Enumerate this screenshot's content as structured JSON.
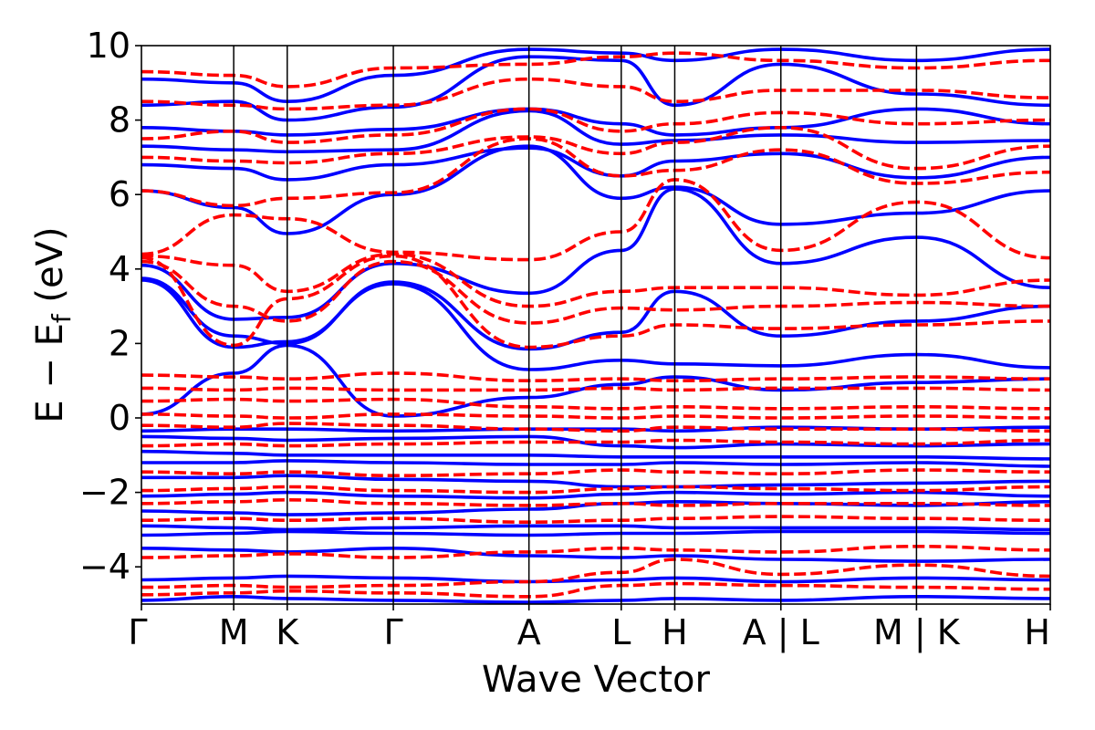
{
  "chart_data": {
    "type": "line",
    "title": "",
    "xlabel": "Wave Vector",
    "ylabel": "E − E",
    "ylabel_sub": "f",
    "ylabel_unit": " (eV)",
    "ylim": [
      -5,
      10
    ],
    "yticks": [
      {
        "value": -4,
        "label": "−4"
      },
      {
        "value": -2,
        "label": "−2"
      },
      {
        "value": 0,
        "label": "0"
      },
      {
        "value": 2,
        "label": "2"
      },
      {
        "value": 4,
        "label": "4"
      },
      {
        "value": 6,
        "label": "6"
      },
      {
        "value": 8,
        "label": "8"
      },
      {
        "value": 10,
        "label": "10"
      }
    ],
    "kpath": [
      {
        "label": "Γ",
        "k": 0
      },
      {
        "label": "M",
        "k": 1
      },
      {
        "label": "K",
        "k": 1.58
      },
      {
        "label": "Γ",
        "k": 2.73
      },
      {
        "label": "A",
        "k": 4.2
      },
      {
        "label": "L",
        "k": 5.2
      },
      {
        "label": "H",
        "k": 5.78
      },
      {
        "label": "A | L",
        "k": 6.93
      },
      {
        "label": "M | K",
        "k": 8.4
      },
      {
        "label": "H",
        "k": 9.85
      }
    ],
    "grid": false,
    "legend": "none",
    "series": [
      {
        "style": "solid",
        "color": "#0000ff",
        "bands": [
          [
            -4.9,
            -4.8,
            -4.85,
            -4.9,
            -4.95,
            -4.9,
            -4.85,
            -4.9,
            -4.8,
            -4.85
          ],
          [
            -4.35,
            -4.3,
            -4.25,
            -4.3,
            -4.4,
            -4.35,
            -4.3,
            -4.4,
            -4.3,
            -4.35
          ],
          [
            -3.5,
            -3.55,
            -3.6,
            -3.5,
            -3.7,
            -3.75,
            -3.7,
            -3.8,
            -3.85,
            -3.8
          ],
          [
            -3.15,
            -3.1,
            -3.05,
            -3.1,
            -3.15,
            -3.1,
            -3.1,
            -3.05,
            -3.05,
            -3.1
          ],
          [
            -2.9,
            -2.95,
            -3.0,
            -2.95,
            -2.9,
            -2.9,
            -2.95,
            -2.95,
            -2.95,
            -3.0
          ],
          [
            -2.5,
            -2.55,
            -2.6,
            -2.55,
            -2.45,
            -2.3,
            -2.25,
            -2.3,
            -2.35,
            -2.25
          ],
          [
            -2.1,
            -2.05,
            -2.0,
            -2.1,
            -2.15,
            -2.05,
            -2.0,
            -2.05,
            -2.0,
            -2.1
          ],
          [
            -1.6,
            -1.6,
            -1.55,
            -1.65,
            -1.7,
            -1.85,
            -1.85,
            -1.8,
            -1.75,
            -1.7
          ],
          [
            -1.2,
            -1.2,
            -1.15,
            -1.2,
            -1.25,
            -1.25,
            -1.2,
            -1.25,
            -1.2,
            -1.3
          ],
          [
            -0.9,
            -0.95,
            -1.0,
            -1.0,
            -1.0,
            -1.05,
            -1.05,
            -1.05,
            -1.05,
            -1.1
          ],
          [
            -0.5,
            -0.55,
            -0.6,
            -0.55,
            -0.5,
            -0.75,
            -0.8,
            -0.7,
            -0.75,
            -0.7
          ],
          [
            -0.35,
            -0.3,
            -0.3,
            -0.35,
            -0.3,
            -0.3,
            -0.35,
            -0.25,
            -0.3,
            -0.25
          ],
          [
            0.1,
            1.2,
            1.95,
            0.05,
            0.55,
            0.9,
            1.1,
            0.75,
            0.95,
            1.05
          ],
          [
            3.7,
            1.9,
            2.05,
            3.6,
            1.3,
            1.55,
            1.45,
            1.4,
            1.7,
            1.35
          ],
          [
            3.75,
            2.2,
            2.0,
            3.65,
            1.85,
            2.3,
            3.4,
            2.2,
            2.6,
            3.0
          ],
          [
            4.1,
            2.65,
            2.7,
            4.15,
            3.35,
            4.5,
            6.15,
            4.15,
            4.85,
            3.5
          ],
          [
            6.1,
            5.65,
            4.95,
            6.0,
            7.3,
            5.9,
            6.2,
            5.2,
            5.5,
            6.1
          ],
          [
            6.8,
            6.7,
            6.4,
            6.8,
            7.25,
            6.5,
            6.9,
            7.1,
            6.45,
            7.0
          ],
          [
            7.3,
            7.2,
            7.15,
            7.2,
            8.25,
            7.35,
            7.45,
            7.6,
            7.4,
            7.45
          ],
          [
            7.8,
            7.7,
            7.6,
            7.75,
            8.3,
            7.9,
            7.6,
            7.8,
            8.3,
            7.9
          ],
          [
            8.4,
            8.5,
            8.0,
            8.35,
            9.7,
            9.6,
            8.4,
            9.5,
            8.7,
            8.4
          ],
          [
            9.1,
            9.0,
            8.5,
            9.2,
            9.9,
            9.8,
            9.6,
            9.9,
            9.6,
            9.9
          ]
        ]
      },
      {
        "style": "dashed",
        "color": "#ff0000",
        "bands": [
          [
            -4.75,
            -4.7,
            -4.65,
            -4.7,
            -4.8,
            -4.5,
            -4.45,
            -4.5,
            -4.55,
            -4.6
          ],
          [
            -4.55,
            -4.5,
            -4.55,
            -4.5,
            -4.4,
            -4.15,
            -3.8,
            -4.2,
            -3.95,
            -4.25
          ],
          [
            -3.75,
            -3.7,
            -3.65,
            -3.75,
            -3.6,
            -3.5,
            -3.55,
            -3.6,
            -3.45,
            -3.55
          ],
          [
            -2.75,
            -2.7,
            -2.75,
            -2.7,
            -2.8,
            -2.75,
            -2.7,
            -2.65,
            -2.7,
            -2.75
          ],
          [
            -2.3,
            -2.25,
            -2.2,
            -2.3,
            -2.35,
            -2.3,
            -2.35,
            -2.3,
            -2.3,
            -2.35
          ],
          [
            -1.95,
            -1.9,
            -1.85,
            -1.95,
            -2.0,
            -1.9,
            -1.85,
            -1.9,
            -1.95,
            -1.85
          ],
          [
            -1.45,
            -1.5,
            -1.45,
            -1.55,
            -1.5,
            -1.4,
            -1.45,
            -1.5,
            -1.4,
            -1.45
          ],
          [
            -0.75,
            -0.7,
            -0.75,
            -0.7,
            -0.65,
            -0.65,
            -0.6,
            -0.65,
            -0.7,
            -0.6
          ],
          [
            -0.2,
            -0.25,
            -0.15,
            -0.2,
            -0.3,
            -0.35,
            -0.25,
            -0.3,
            -0.3,
            -0.35
          ],
          [
            0.1,
            0.05,
            0.0,
            0.1,
            0.05,
            0.0,
            0.05,
            0.0,
            0.05,
            0.0
          ],
          [
            0.45,
            0.5,
            0.45,
            0.5,
            0.3,
            0.25,
            0.3,
            0.25,
            0.3,
            0.25
          ],
          [
            0.8,
            0.75,
            0.8,
            0.75,
            0.75,
            0.8,
            0.75,
            0.8,
            0.8,
            0.75
          ],
          [
            1.15,
            1.1,
            1.05,
            1.2,
            1.0,
            1.05,
            1.0,
            1.05,
            1.1,
            1.05
          ],
          [
            4.3,
            1.95,
            3.2,
            4.35,
            1.9,
            2.2,
            2.5,
            2.4,
            2.5,
            2.6
          ],
          [
            4.2,
            3.0,
            2.6,
            4.2,
            2.55,
            2.95,
            2.9,
            3.0,
            3.1,
            3.0
          ],
          [
            4.35,
            4.1,
            3.4,
            4.4,
            3.0,
            3.4,
            3.5,
            3.5,
            3.3,
            3.7
          ],
          [
            4.4,
            5.45,
            5.35,
            4.45,
            4.25,
            5.0,
            6.4,
            4.5,
            5.8,
            4.3
          ],
          [
            6.1,
            5.7,
            5.9,
            6.05,
            7.5,
            6.5,
            6.65,
            7.2,
            6.3,
            6.6
          ],
          [
            7.0,
            6.9,
            6.85,
            7.1,
            7.55,
            7.1,
            7.4,
            7.8,
            6.7,
            7.3
          ],
          [
            7.5,
            7.7,
            7.4,
            7.6,
            8.3,
            7.7,
            7.9,
            8.2,
            7.9,
            8.0
          ],
          [
            8.5,
            8.4,
            8.3,
            8.4,
            9.1,
            8.9,
            8.5,
            8.8,
            8.8,
            8.6
          ],
          [
            9.3,
            9.2,
            8.9,
            9.4,
            9.5,
            9.7,
            9.8,
            9.6,
            9.4,
            9.6
          ]
        ]
      }
    ]
  }
}
